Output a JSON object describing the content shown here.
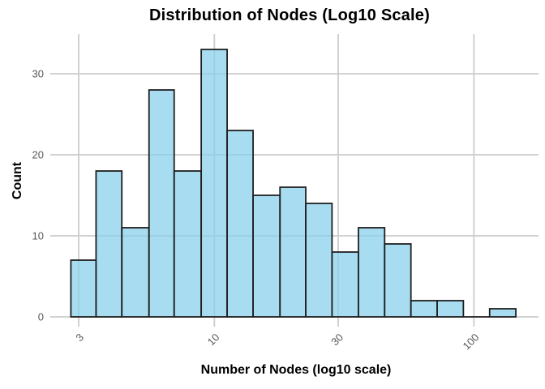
{
  "chart_data": {
    "type": "bar",
    "subtype": "histogram",
    "title": "Distribution of Nodes (Log10 Scale)",
    "xlabel": "Number of Nodes (log10 scale)",
    "ylabel": "Count",
    "x_scale": "log10",
    "grid": "on",
    "x_ticks": [
      3,
      10,
      30,
      100
    ],
    "y_ticks": [
      0,
      10,
      20,
      30
    ],
    "ylim": [
      0,
      35
    ],
    "xlim": [
      2.7,
      177
    ],
    "bin_edges": [
      2.8,
      3.5,
      4.4,
      5.6,
      7.0,
      8.9,
      11.2,
      14.1,
      17.9,
      22.5,
      28.4,
      35.9,
      45.3,
      57.2,
      72.2,
      91.1,
      115.0,
      145.1
    ],
    "counts": [
      7,
      18,
      11,
      28,
      18,
      33,
      23,
      15,
      16,
      14,
      8,
      11,
      9,
      2,
      2,
      0,
      1
    ]
  },
  "colors": {
    "background": "#ffffff",
    "bar_fill": "#87CEEB",
    "bar_edge": "#1f1f1f",
    "grid": "#cccccc",
    "tick_label": "#595959",
    "text": "#000000"
  }
}
